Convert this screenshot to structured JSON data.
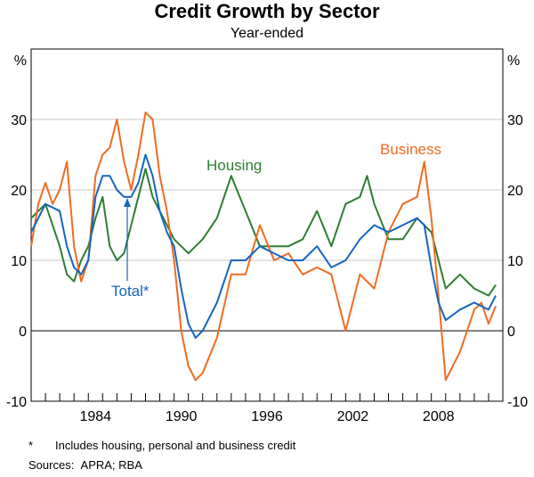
{
  "chart_data": {
    "type": "line",
    "title": "Credit Growth by Sector",
    "subtitle": "Year-ended",
    "ylabel_left": "%",
    "ylabel_right": "%",
    "ylim": [
      -10,
      40
    ],
    "xlim": [
      1980.0,
      2013.0
    ],
    "yticks": [
      -10,
      0,
      10,
      20,
      30
    ],
    "xtick_labels": [
      "1984",
      "1990",
      "1996",
      "2002",
      "2008"
    ],
    "xtick_values": [
      1984,
      1990,
      1996,
      2002,
      2008
    ],
    "colors": {
      "Housing": "#2e7d32",
      "Business": "#ef6c21",
      "Total*": "#1565c0"
    },
    "series": [
      {
        "name": "Housing",
        "x": [
          1980.0,
          1981.0,
          1982.0,
          1982.5,
          1983.0,
          1983.5,
          1984.0,
          1984.5,
          1985.0,
          1985.5,
          1986.0,
          1986.5,
          1987.0,
          1987.5,
          1988.0,
          1988.5,
          1989.0,
          1990.0,
          1991.0,
          1992.0,
          1993.0,
          1994.0,
          1995.0,
          1996.0,
          1997.0,
          1998.0,
          1999.0,
          2000.0,
          2001.0,
          2002.0,
          2003.0,
          2003.5,
          2004.0,
          2005.0,
          2006.0,
          2007.0,
          2008.0,
          2009.0,
          2010.0,
          2011.0,
          2012.0,
          2012.5
        ],
        "values": [
          16,
          18,
          12,
          8,
          7,
          10,
          12,
          16,
          19,
          12,
          10,
          11,
          15,
          19,
          23,
          19,
          17,
          13,
          11,
          13,
          16,
          22,
          17,
          12,
          12,
          12,
          13,
          17,
          12,
          18,
          19,
          22,
          18,
          13,
          13,
          16,
          14,
          6,
          8,
          6,
          5,
          6.5
        ]
      },
      {
        "name": "Business",
        "x": [
          1980.0,
          1980.5,
          1981.0,
          1981.5,
          1982.0,
          1982.5,
          1983.0,
          1983.5,
          1984.0,
          1984.5,
          1985.0,
          1985.5,
          1986.0,
          1986.5,
          1987.0,
          1987.5,
          1988.0,
          1988.5,
          1989.0,
          1989.5,
          1990.0,
          1990.5,
          1991.0,
          1991.5,
          1992.0,
          1993.0,
          1994.0,
          1995.0,
          1996.0,
          1997.0,
          1998.0,
          1999.0,
          2000.0,
          2001.0,
          2002.0,
          2003.0,
          2004.0,
          2005.0,
          2006.0,
          2007.0,
          2007.5,
          2008.0,
          2008.5,
          2009.0,
          2010.0,
          2011.0,
          2011.5,
          2012.0,
          2012.5
        ],
        "values": [
          12,
          18,
          21,
          18,
          20,
          24,
          12,
          7,
          10,
          22,
          25,
          26,
          30,
          24,
          20,
          25,
          31,
          30,
          22,
          17,
          10,
          0,
          -5,
          -7,
          -6,
          -1,
          8,
          8,
          15,
          10,
          11,
          8,
          9,
          8,
          0,
          8,
          6,
          14,
          18,
          19,
          24,
          16,
          5,
          -7,
          -3,
          3,
          4,
          1,
          3.5
        ]
      },
      {
        "name": "Total*",
        "x": [
          1980.0,
          1981.0,
          1982.0,
          1982.5,
          1983.0,
          1983.5,
          1984.0,
          1984.5,
          1985.0,
          1985.5,
          1986.0,
          1986.5,
          1987.0,
          1987.5,
          1988.0,
          1988.5,
          1989.0,
          1989.5,
          1990.0,
          1990.5,
          1991.0,
          1991.5,
          1992.0,
          1993.0,
          1994.0,
          1995.0,
          1996.0,
          1997.0,
          1998.0,
          1999.0,
          2000.0,
          2001.0,
          2002.0,
          2003.0,
          2004.0,
          2005.0,
          2006.0,
          2007.0,
          2007.5,
          2008.0,
          2008.5,
          2009.0,
          2010.0,
          2011.0,
          2012.0,
          2012.5
        ],
        "values": [
          14,
          18,
          17,
          12,
          9,
          8,
          10,
          19,
          22,
          22,
          20,
          19,
          19,
          21,
          25,
          22,
          17,
          14,
          12,
          6,
          1,
          -1,
          0,
          4,
          10,
          10,
          12,
          11,
          10,
          10,
          12,
          9,
          10,
          13,
          15,
          14,
          15,
          16,
          15,
          9,
          4,
          1.5,
          3,
          4,
          3,
          5
        ]
      }
    ],
    "annotations": [
      {
        "text": "Housing",
        "series": "Housing"
      },
      {
        "text": "Business",
        "series": "Business"
      },
      {
        "text": "Total*",
        "series": "Total*"
      }
    ]
  },
  "footnote": {
    "mark": "*",
    "text": "Includes housing, personal and business credit"
  },
  "sources": "Sources:  APRA; RBA"
}
